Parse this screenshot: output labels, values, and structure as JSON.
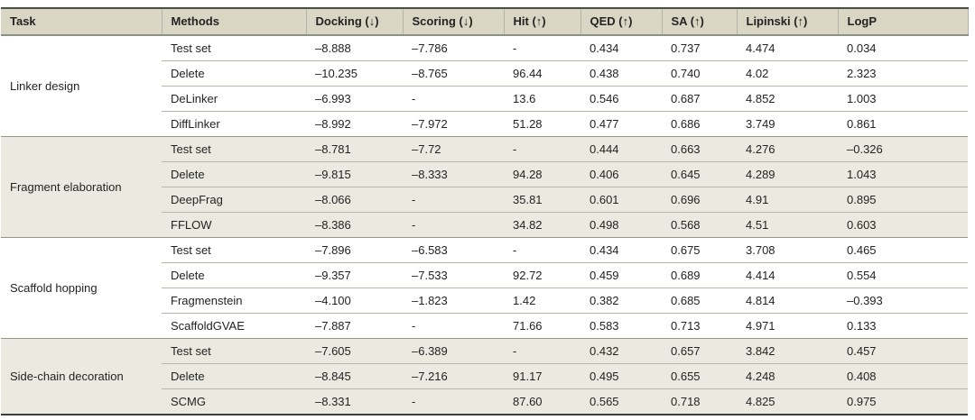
{
  "table": {
    "columns": [
      "Task",
      "Methods",
      "Docking (↓)",
      "Scoring (↓)",
      "Hit (↑)",
      "QED (↑)",
      "SA (↑)",
      "Lipinski (↑)",
      "LogP"
    ],
    "groups": [
      {
        "task": "Linker design",
        "rows": [
          {
            "method": "Test set",
            "values": [
              "–8.888",
              "–7.786",
              "-",
              "0.434",
              "0.737",
              "4.474",
              "0.034"
            ]
          },
          {
            "method": "Delete",
            "values": [
              "–10.235",
              "–8.765",
              "96.44",
              "0.438",
              "0.740",
              "4.02",
              "2.323"
            ]
          },
          {
            "method": "DeLinker",
            "values": [
              "–6.993",
              "-",
              "13.6",
              "0.546",
              "0.687",
              "4.852",
              "1.003"
            ]
          },
          {
            "method": "DiffLinker",
            "values": [
              "–8.992",
              "–7.972",
              "51.28",
              "0.477",
              "0.686",
              "3.749",
              "0.861"
            ]
          }
        ]
      },
      {
        "task": "Fragment elaboration",
        "rows": [
          {
            "method": "Test set",
            "values": [
              "–8.781",
              "–7.72",
              "-",
              "0.444",
              "0.663",
              "4.276",
              "–0.326"
            ]
          },
          {
            "method": "Delete",
            "values": [
              "–9.815",
              "–8.333",
              "94.28",
              "0.406",
              "0.645",
              "4.289",
              "1.043"
            ]
          },
          {
            "method": "DeepFrag",
            "values": [
              "–8.066",
              "-",
              "35.81",
              "0.601",
              "0.696",
              "4.91",
              "0.895"
            ]
          },
          {
            "method": "FFLOW",
            "values": [
              "–8.386",
              "-",
              "34.82",
              "0.498",
              "0.568",
              "4.51",
              "0.603"
            ]
          }
        ]
      },
      {
        "task": "Scaffold hopping",
        "rows": [
          {
            "method": "Test set",
            "values": [
              "–7.896",
              "–6.583",
              "-",
              "0.434",
              "0.675",
              "3.708",
              "0.465"
            ]
          },
          {
            "method": "Delete",
            "values": [
              "–9.357",
              "–7.533",
              "92.72",
              "0.459",
              "0.689",
              "4.414",
              "0.554"
            ]
          },
          {
            "method": "Fragmenstein",
            "values": [
              "–4.100",
              "–1.823",
              "1.42",
              "0.382",
              "0.685",
              "4.814",
              "–0.393"
            ]
          },
          {
            "method": "ScaffoldGVAE",
            "values": [
              "–7.887",
              "-",
              "71.66",
              "0.583",
              "0.713",
              "4.971",
              "0.133"
            ]
          }
        ]
      },
      {
        "task": "Side-chain decoration",
        "rows": [
          {
            "method": "Test set",
            "values": [
              "–7.605",
              "–6.389",
              "-",
              "0.432",
              "0.657",
              "3.842",
              "0.457"
            ]
          },
          {
            "method": "Delete",
            "values": [
              "–8.845",
              "–7.216",
              "91.17",
              "0.495",
              "0.655",
              "4.248",
              "0.408"
            ]
          },
          {
            "method": "SCMG",
            "values": [
              "–8.331",
              "-",
              "87.60",
              "0.565",
              "0.718",
              "4.825",
              "0.975"
            ]
          }
        ]
      }
    ]
  },
  "colors": {
    "header_background": "#d9d6c4",
    "group_highlight_background": "#eaeae0",
    "top_border": "#4d4d45",
    "bottom_border": "#3e3e38",
    "group_separator": "#96968c",
    "row_separator": "#b6b6ac",
    "text": "#232323"
  },
  "chart_data": {
    "type": "table",
    "title": "",
    "columns": [
      "Task",
      "Methods",
      "Docking (↓)",
      "Scoring (↓)",
      "Hit (↑)",
      "QED (↑)",
      "SA (↑)",
      "Lipinski (↑)",
      "LogP"
    ],
    "rows": [
      [
        "Linker design",
        "Test set",
        -8.888,
        -7.786,
        null,
        0.434,
        0.737,
        4.474,
        0.034
      ],
      [
        "Linker design",
        "Delete",
        -10.235,
        -8.765,
        96.44,
        0.438,
        0.74,
        4.02,
        2.323
      ],
      [
        "Linker design",
        "DeLinker",
        -6.993,
        null,
        13.6,
        0.546,
        0.687,
        4.852,
        1.003
      ],
      [
        "Linker design",
        "DiffLinker",
        -8.992,
        -7.972,
        51.28,
        0.477,
        0.686,
        3.749,
        0.861
      ],
      [
        "Fragment elaboration",
        "Test set",
        -8.781,
        -7.72,
        null,
        0.444,
        0.663,
        4.276,
        -0.326
      ],
      [
        "Fragment elaboration",
        "Delete",
        -9.815,
        -8.333,
        94.28,
        0.406,
        0.645,
        4.289,
        1.043
      ],
      [
        "Fragment elaboration",
        "DeepFrag",
        -8.066,
        null,
        35.81,
        0.601,
        0.696,
        4.91,
        0.895
      ],
      [
        "Fragment elaboration",
        "FFLOW",
        -8.386,
        null,
        34.82,
        0.498,
        0.568,
        4.51,
        0.603
      ],
      [
        "Scaffold hopping",
        "Test set",
        -7.896,
        -6.583,
        null,
        0.434,
        0.675,
        3.708,
        0.465
      ],
      [
        "Scaffold hopping",
        "Delete",
        -9.357,
        -7.533,
        92.72,
        0.459,
        0.689,
        4.414,
        0.554
      ],
      [
        "Scaffold hopping",
        "Fragmenstein",
        -4.1,
        -1.823,
        1.42,
        0.382,
        0.685,
        4.814,
        -0.393
      ],
      [
        "Scaffold hopping",
        "ScaffoldGVAE",
        -7.887,
        null,
        71.66,
        0.583,
        0.713,
        4.971,
        0.133
      ],
      [
        "Side-chain decoration",
        "Test set",
        -7.605,
        -6.389,
        null,
        0.432,
        0.657,
        3.842,
        0.457
      ],
      [
        "Side-chain decoration",
        "Delete",
        -8.845,
        -7.216,
        91.17,
        0.495,
        0.655,
        4.248,
        0.408
      ],
      [
        "Side-chain decoration",
        "SCMG",
        -8.331,
        null,
        87.6,
        0.565,
        0.718,
        4.825,
        0.975
      ]
    ]
  }
}
